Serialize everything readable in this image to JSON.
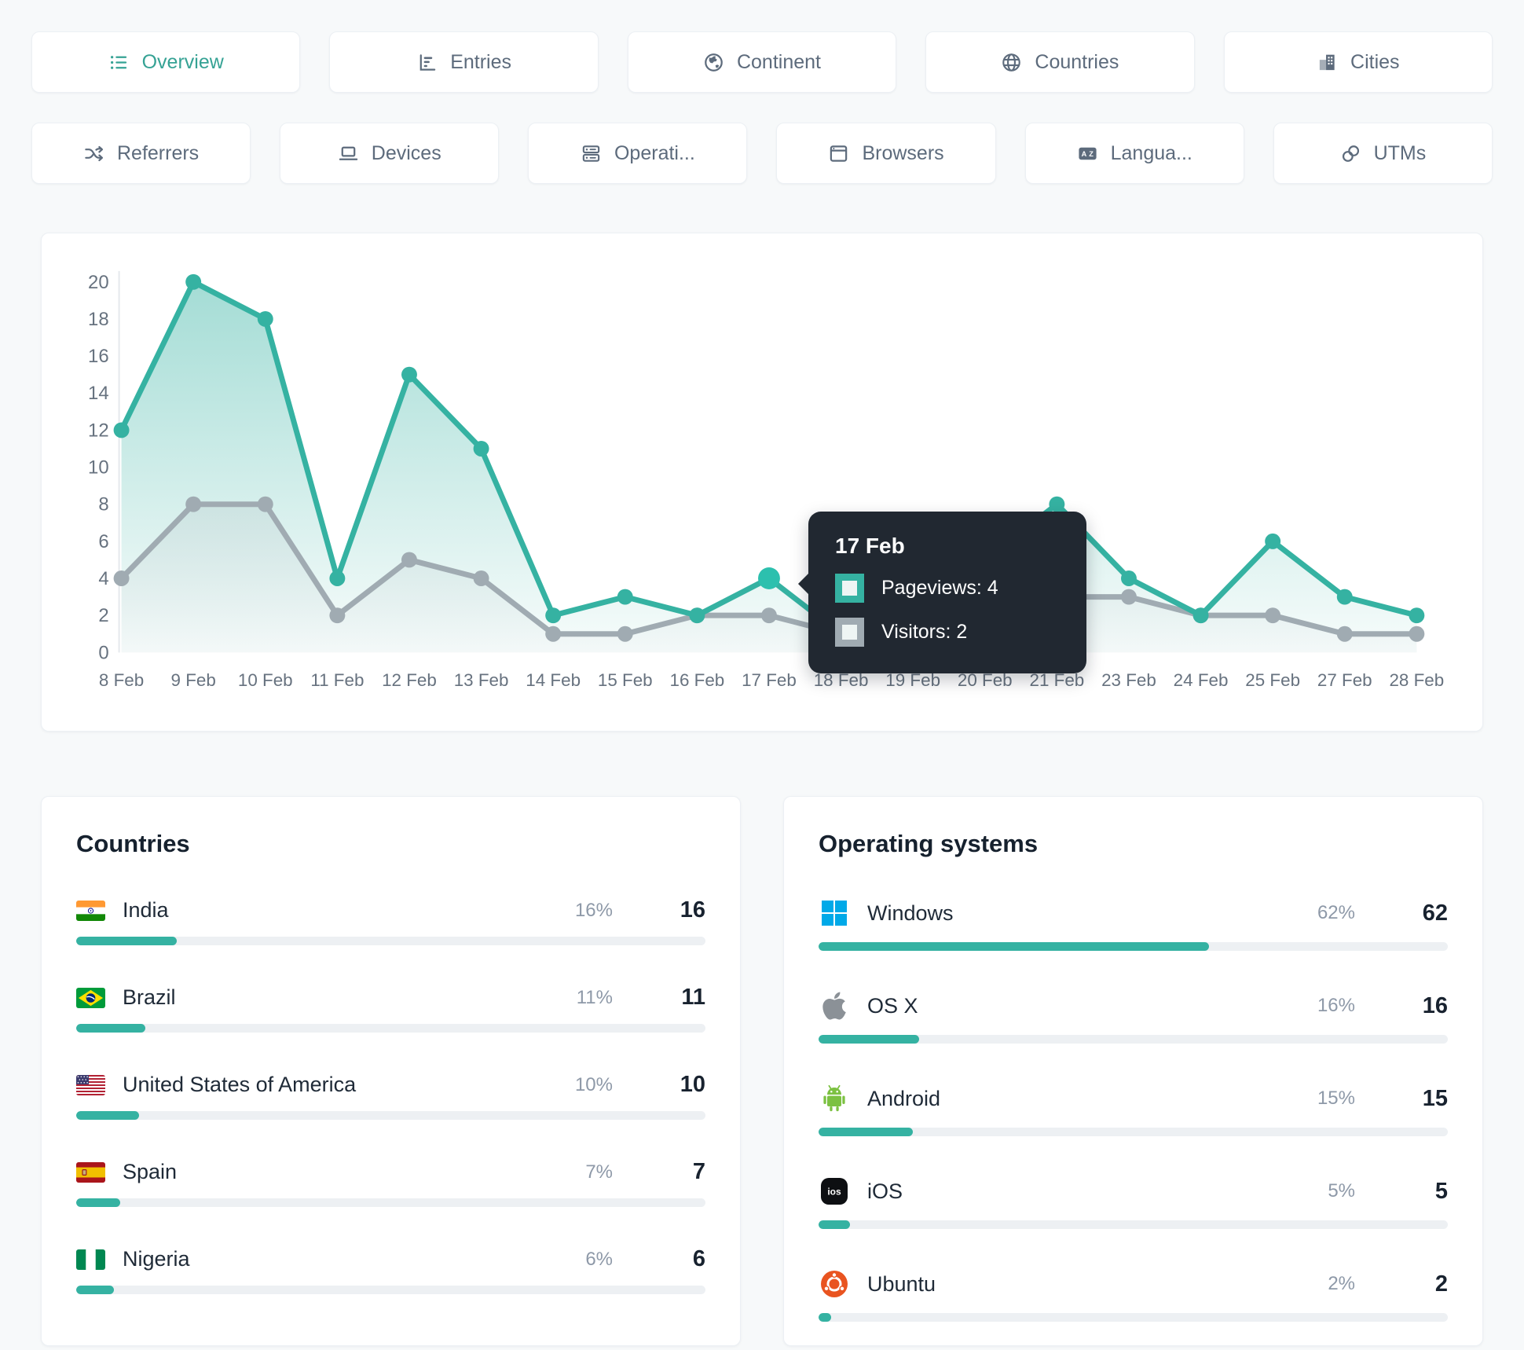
{
  "colors": {
    "accent": "#35b2a2",
    "accent_bright": "#2cc0ae",
    "gray_line": "#a0abb2",
    "tooltip_bg": "#212831",
    "bar_track": "#edf0f3",
    "windows_blue": "#00a9e8",
    "android_green": "#7cc142",
    "ubuntu_orange": "#e95420",
    "apple_gray": "#8b9197",
    "active_tab_text": "#35a294"
  },
  "tabs": {
    "row1": [
      {
        "label": "Overview",
        "icon": "overview-icon",
        "active": true
      },
      {
        "label": "Entries",
        "icon": "entries-icon",
        "active": false
      },
      {
        "label": "Continent",
        "icon": "continent-icon",
        "active": false
      },
      {
        "label": "Countries",
        "icon": "countries-icon",
        "active": false
      },
      {
        "label": "Cities",
        "icon": "cities-icon",
        "active": false
      }
    ],
    "row2": [
      {
        "label": "Referrers",
        "icon": "referrers-icon",
        "active": false
      },
      {
        "label": "Devices",
        "icon": "devices-icon",
        "active": false
      },
      {
        "label": "Operati...",
        "icon": "operating-systems-icon",
        "active": false
      },
      {
        "label": "Browsers",
        "icon": "browsers-icon",
        "active": false
      },
      {
        "label": "Langua...",
        "icon": "languages-icon",
        "active": false
      },
      {
        "label": "UTMs",
        "icon": "utms-icon",
        "active": false
      }
    ]
  },
  "chart_data": {
    "type": "line",
    "x": [
      "8 Feb",
      "9 Feb",
      "10 Feb",
      "11 Feb",
      "12 Feb",
      "13 Feb",
      "14 Feb",
      "15 Feb",
      "16 Feb",
      "17 Feb",
      "18 Feb",
      "19 Feb",
      "20 Feb",
      "21 Feb",
      "23 Feb",
      "24 Feb",
      "25 Feb",
      "27 Feb",
      "28 Feb"
    ],
    "series": [
      {
        "name": "Pageviews",
        "color": "#35b2a2",
        "values": [
          12,
          20,
          18,
          4,
          15,
          11,
          2,
          3,
          2,
          4,
          1,
          2,
          5,
          8,
          4,
          2,
          6,
          3,
          2
        ]
      },
      {
        "name": "Visitors",
        "color": "#a0abb2",
        "values": [
          4,
          8,
          8,
          2,
          5,
          4,
          1,
          1,
          2,
          2,
          1,
          1,
          3,
          3,
          3,
          2,
          2,
          1,
          1
        ]
      }
    ],
    "ylim": [
      0,
      20
    ],
    "yticks": [
      0,
      2,
      4,
      6,
      8,
      10,
      12,
      14,
      16,
      18,
      20
    ],
    "grid": false,
    "legend": "none",
    "tooltip": {
      "title": "17 Feb",
      "anchor_index": 9,
      "rows": [
        {
          "label": "Pageviews",
          "value": 4,
          "text": "Pageviews: 4",
          "color": "#35b2a2"
        },
        {
          "label": "Visitors",
          "value": 2,
          "text": "Visitors: 2",
          "color": "#a0abb2"
        }
      ]
    }
  },
  "panels": {
    "countries": {
      "title": "Countries",
      "rows": [
        {
          "name": "India",
          "icon": "india-flag",
          "percent": "16%",
          "count": "16"
        },
        {
          "name": "Brazil",
          "icon": "brazil-flag",
          "percent": "11%",
          "count": "11"
        },
        {
          "name": "United States of America",
          "icon": "usa-flag",
          "percent": "10%",
          "count": "10"
        },
        {
          "name": "Spain",
          "icon": "spain-flag",
          "percent": "7%",
          "count": "7"
        },
        {
          "name": "Nigeria",
          "icon": "nigeria-flag",
          "percent": "6%",
          "count": "6"
        }
      ]
    },
    "operating_systems": {
      "title": "Operating systems",
      "rows": [
        {
          "name": "Windows",
          "icon": "windows-icon",
          "percent": "62%",
          "count": "62"
        },
        {
          "name": "OS X",
          "icon": "apple-icon",
          "percent": "16%",
          "count": "16"
        },
        {
          "name": "Android",
          "icon": "android-icon",
          "percent": "15%",
          "count": "15"
        },
        {
          "name": "iOS",
          "icon": "ios-icon",
          "percent": "5%",
          "count": "5"
        },
        {
          "name": "Ubuntu",
          "icon": "ubuntu-icon",
          "percent": "2%",
          "count": "2"
        }
      ]
    }
  }
}
